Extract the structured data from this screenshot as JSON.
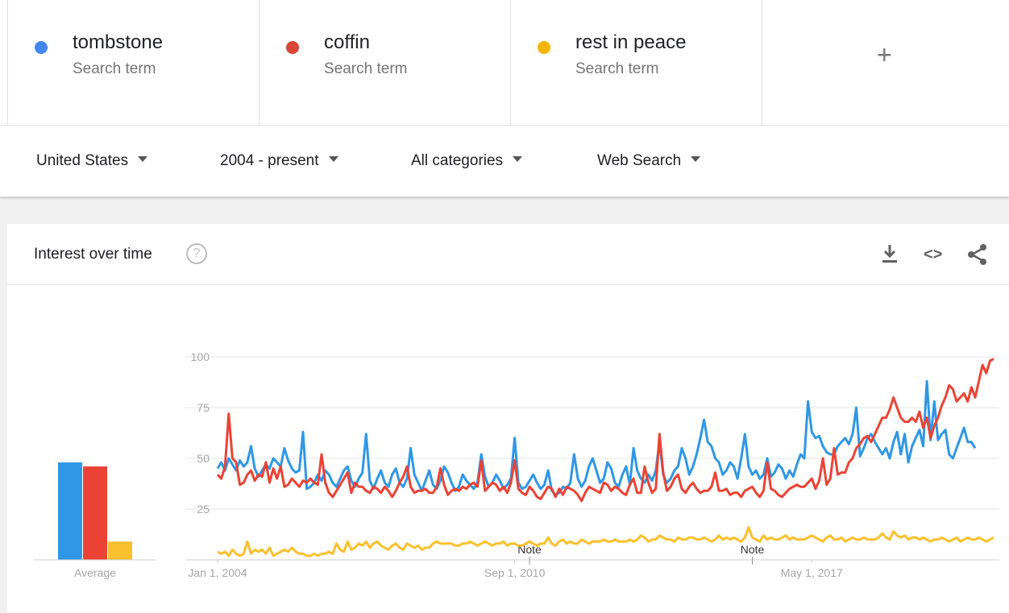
{
  "terms": [
    {
      "name": "tombstone",
      "sub": "Search term",
      "color": "#4285f4"
    },
    {
      "name": "coffin",
      "sub": "Search term",
      "color": "#db4437"
    },
    {
      "name": "rest in peace",
      "sub": "Search term",
      "color": "#f4b400"
    }
  ],
  "add_term_label": "+",
  "filters": {
    "region": "United States",
    "time": "2004 - present",
    "category": "All categories",
    "search_type": "Web Search"
  },
  "card": {
    "title": "Interest over time",
    "help_glyph": "?",
    "icons": [
      "download-icon",
      "embed-icon",
      "share-icon"
    ],
    "embed_glyph": "<>"
  },
  "chart_data": {
    "type": "line",
    "x_start": "2004-01",
    "x_step": "month",
    "ylim": [
      0,
      100
    ],
    "yticks": [
      25,
      50,
      75,
      100
    ],
    "xtick_labels": [
      "Jan 1, 2004",
      "Sep 1, 2010",
      "May 1, 2017"
    ],
    "xtick_dates": [
      "2004-01",
      "2010-09",
      "2017-05"
    ],
    "notes": [
      {
        "label": "Note",
        "date": "2011-01"
      },
      {
        "label": "Note",
        "date": "2016-01"
      }
    ],
    "average_label": "Average",
    "averages": [
      {
        "name": "tombstone",
        "value": 48,
        "color": "#2f97e6"
      },
      {
        "name": "coffin",
        "value": 46,
        "color": "#ea4335"
      },
      {
        "name": "rest in peace",
        "value": 9,
        "color": "#fbc02d"
      }
    ],
    "series": [
      {
        "name": "tombstone",
        "color": "#2f97e6",
        "values": [
          45,
          48,
          44,
          50,
          47,
          44,
          49,
          46,
          48,
          56,
          45,
          41,
          44,
          47,
          45,
          50,
          48,
          46,
          55,
          49,
          45,
          43,
          44,
          63,
          35,
          36,
          38,
          42,
          39,
          44,
          42,
          38,
          36,
          40,
          44,
          46,
          39,
          36,
          40,
          43,
          62,
          39,
          35,
          40,
          44,
          38,
          36,
          42,
          45,
          38,
          36,
          40,
          55,
          42,
          38,
          34,
          39,
          44,
          37,
          35,
          39,
          46,
          43,
          38,
          34,
          36,
          42,
          39,
          37,
          35,
          38,
          52,
          41,
          36,
          38,
          42,
          39,
          35,
          37,
          40,
          60,
          38,
          35,
          36,
          39,
          42,
          38,
          35,
          37,
          44,
          34,
          32,
          33,
          36,
          35,
          38,
          52,
          40,
          36,
          39,
          46,
          50,
          44,
          38,
          40,
          48,
          45,
          38,
          36,
          42,
          46,
          37,
          55,
          44,
          40,
          38,
          42,
          39,
          44,
          58,
          42,
          38,
          40,
          44,
          46,
          55,
          50,
          42,
          46,
          52,
          60,
          69,
          58,
          56,
          50,
          48,
          42,
          44,
          48,
          46,
          40,
          50,
          62,
          46,
          42,
          44,
          40,
          42,
          50,
          41,
          43,
          47,
          45,
          40,
          44,
          41,
          47,
          52,
          50,
          78,
          63,
          60,
          61,
          56,
          53,
          52,
          52,
          56,
          58,
          60,
          57,
          62,
          75,
          51,
          55,
          60,
          62,
          58,
          55,
          52,
          55,
          50,
          58,
          63,
          52,
          62,
          48,
          56,
          60,
          64,
          56,
          88,
          59,
          78,
          59,
          62,
          64,
          52,
          50,
          55,
          60,
          65,
          58,
          58,
          55
        ]
      },
      {
        "name": "coffin",
        "color": "#ea4335",
        "values": [
          42,
          40,
          46,
          72,
          50,
          48,
          37,
          38,
          42,
          44,
          39,
          42,
          41,
          48,
          38,
          45,
          40,
          46,
          36,
          37,
          40,
          38,
          36,
          39,
          38,
          40,
          38,
          37,
          52,
          38,
          33,
          31,
          34,
          37,
          40,
          43,
          33,
          38,
          36,
          36,
          34,
          33,
          36,
          35,
          33,
          36,
          34,
          31,
          34,
          38,
          41,
          46,
          36,
          33,
          34,
          34,
          35,
          33,
          33,
          36,
          45,
          37,
          32,
          34,
          35,
          34,
          36,
          35,
          37,
          38,
          36,
          49,
          34,
          36,
          38,
          37,
          34,
          36,
          33,
          38,
          49,
          35,
          33,
          32,
          36,
          34,
          31,
          30,
          33,
          36,
          35,
          31,
          35,
          32,
          36,
          35,
          34,
          32,
          29,
          33,
          36,
          35,
          34,
          33,
          38,
          37,
          34,
          36,
          35,
          33,
          32,
          37,
          40,
          33,
          33,
          46,
          38,
          33,
          35,
          62,
          43,
          34,
          36,
          40,
          42,
          35,
          33,
          36,
          38,
          35,
          33,
          34,
          34,
          36,
          43,
          34,
          34,
          35,
          32,
          33,
          33,
          31,
          34,
          35,
          36,
          33,
          31,
          34,
          48,
          35,
          34,
          32,
          31,
          33,
          35,
          36,
          37,
          36,
          36,
          38,
          40,
          35,
          39,
          50,
          37,
          40,
          55,
          42,
          43,
          43,
          48,
          50,
          55,
          57,
          60,
          61,
          58,
          62,
          66,
          70,
          70,
          74,
          80,
          75,
          70,
          68,
          68,
          70,
          68,
          73,
          65,
          70,
          60,
          66,
          70,
          76,
          80,
          86,
          84,
          78,
          80,
          82,
          78,
          85,
          80,
          88,
          96,
          92,
          98,
          99
        ]
      },
      {
        "name": "rest in peace",
        "color": "#fbc02d",
        "values": [
          4,
          3,
          4,
          2,
          5,
          3,
          2,
          3,
          9,
          3,
          5,
          4,
          5,
          3,
          6,
          2,
          3,
          4,
          5,
          4,
          6,
          4,
          3,
          3,
          2,
          2,
          3,
          2,
          3,
          3,
          4,
          3,
          8,
          5,
          4,
          9,
          5,
          6,
          8,
          7,
          9,
          6,
          8,
          9,
          7,
          6,
          5,
          7,
          8,
          6,
          5,
          8,
          7,
          6,
          7,
          5,
          6,
          6,
          8,
          9,
          8,
          8,
          8,
          8,
          7,
          7,
          8,
          8,
          9,
          8,
          7,
          8,
          9,
          8,
          7,
          8,
          8,
          9,
          7,
          8,
          8,
          7,
          7,
          8,
          9,
          8,
          7,
          8,
          8,
          11,
          8,
          7,
          9,
          10,
          8,
          9,
          8,
          8,
          10,
          9,
          8,
          9,
          9,
          9,
          10,
          9,
          9,
          10,
          9,
          9,
          9,
          10,
          9,
          10,
          12,
          11,
          9,
          10,
          10,
          12,
          11,
          10,
          10,
          9,
          11,
          10,
          10,
          11,
          11,
          10,
          10,
          11,
          10,
          9,
          10,
          12,
          10,
          11,
          10,
          11,
          10,
          9,
          11,
          16,
          11,
          10,
          9,
          12,
          10,
          11,
          10,
          10,
          11,
          12,
          10,
          11,
          10,
          10,
          10,
          11,
          12,
          11,
          10,
          9,
          11,
          12,
          10,
          10,
          11,
          9,
          10,
          11,
          10,
          10,
          11,
          10,
          10,
          10,
          11,
          13,
          11,
          10,
          14,
          12,
          11,
          12,
          10,
          11,
          11,
          10,
          11,
          10,
          9,
          10,
          10,
          11,
          10,
          9,
          10,
          11,
          9,
          10,
          11,
          10,
          10,
          11,
          10,
          9,
          10,
          11
        ]
      }
    ]
  }
}
